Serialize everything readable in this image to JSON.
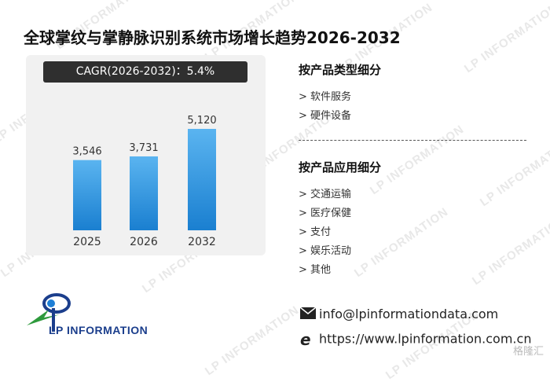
{
  "title": "全球掌纹与掌静脉识别系统市场增长趋势2026-2032",
  "cagr_label": "CAGR(2026-2032)：5.4%",
  "chart_data": {
    "type": "bar",
    "categories": [
      "2025",
      "2026",
      "2032"
    ],
    "values": [
      3546,
      3731,
      5120
    ],
    "value_labels": [
      "3,546",
      "3,731",
      "5,120"
    ],
    "title": "",
    "xlabel": "",
    "ylabel": "",
    "ylim": [
      0,
      6000
    ],
    "grid": false,
    "colors": {
      "bar_top": "#5ab4f0",
      "bar_bottom": "#1a7fd0"
    }
  },
  "segments": {
    "by_type": {
      "heading": "按产品类型细分",
      "items": [
        "> 软件服务",
        "> 硬件设备"
      ]
    },
    "by_application": {
      "heading": "按产品应用细分",
      "items": [
        "> 交通运输",
        "> 医疗保健",
        "> 支付",
        "> 娱乐活动",
        "> 其他"
      ]
    }
  },
  "brand": {
    "logo_text": "LP INFORMATION",
    "watermark": "LP INFORMATION",
    "colors": {
      "navy": "#1b3e8c",
      "green": "#2e9a3c",
      "blue": "#1e7fd6"
    }
  },
  "contact": {
    "email": "info@lpinformationdata.com",
    "website": "https://www.lpinformation.com.cn"
  },
  "corner_mark": "格隆汇",
  "icons": {
    "email": "envelope-icon",
    "web": "browser-e-icon"
  }
}
